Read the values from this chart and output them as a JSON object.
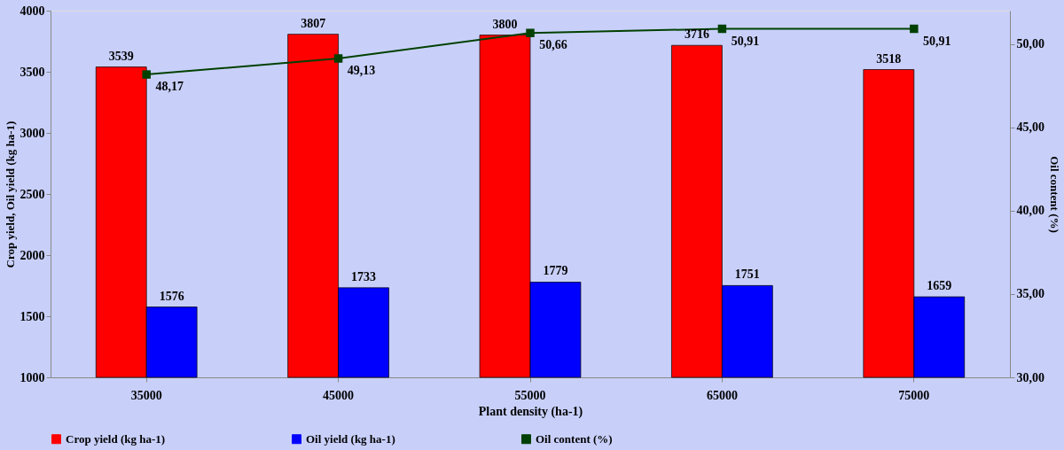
{
  "chart_data": {
    "type": "bar",
    "xlabel": "Plant density (ha-1)",
    "ylabel": "Crop yield, Oil yield (kg ha-1)",
    "y2label": "Oil content (%)",
    "categories": [
      "35000",
      "45000",
      "55000",
      "65000",
      "75000"
    ],
    "series": [
      {
        "name": "Crop yield (kg ha-1)",
        "color": "#ff0000",
        "values": [
          3539,
          3807,
          3800,
          3716,
          3518
        ],
        "value_labels": [
          "3539",
          "3807",
          "3800",
          "3716",
          "3518"
        ]
      },
      {
        "name": "Oil yield (kg ha-1)",
        "color": "#0000ff",
        "values": [
          1576,
          1733,
          1779,
          1751,
          1659
        ],
        "value_labels": [
          "1576",
          "1733",
          "1779",
          "1751",
          "1659"
        ]
      },
      {
        "name": "Oil content (%)",
        "type": "line",
        "axis": "y2",
        "marker": "square",
        "color": "#004000",
        "values": [
          48.17,
          49.13,
          50.66,
          50.91,
          50.91
        ],
        "value_labels": [
          "48,17",
          "49,13",
          "50,66",
          "50,91",
          "50,91"
        ]
      }
    ],
    "ylim": [
      1000,
      4000
    ],
    "yticks": [
      1000,
      1500,
      2000,
      2500,
      3000,
      3500,
      4000
    ],
    "y2lim": [
      30,
      52
    ],
    "y2ticks": [
      {
        "value": 30,
        "label": "30,00"
      },
      {
        "value": 35,
        "label": "35,00"
      },
      {
        "value": 40,
        "label": "40,00"
      },
      {
        "value": 45,
        "label": "45,00"
      },
      {
        "value": 50,
        "label": "50,00"
      }
    ],
    "legend": "bottom",
    "grid": false
  }
}
